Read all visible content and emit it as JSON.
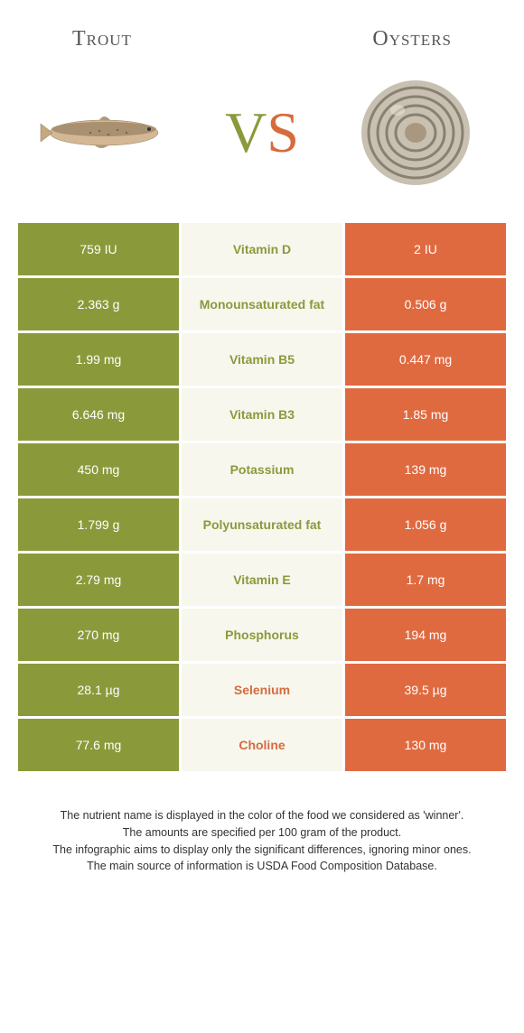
{
  "header": {
    "left_title": "Trout",
    "right_title": "Oysters"
  },
  "vs": {
    "v": "V",
    "s": "S"
  },
  "colors": {
    "left_bg": "#8a9a3b",
    "mid_bg": "#f7f7ee",
    "right_bg": "#e06a40",
    "nutrient_green": "#8a9a3b",
    "nutrient_orange": "#d66b3e"
  },
  "rows": [
    {
      "left": "759 IU",
      "nutrient": "Vitamin D",
      "right": "2 IU",
      "winner": "left"
    },
    {
      "left": "2.363 g",
      "nutrient": "Monounsaturated fat",
      "right": "0.506 g",
      "winner": "left"
    },
    {
      "left": "1.99 mg",
      "nutrient": "Vitamin B5",
      "right": "0.447 mg",
      "winner": "left"
    },
    {
      "left": "6.646 mg",
      "nutrient": "Vitamin B3",
      "right": "1.85 mg",
      "winner": "left"
    },
    {
      "left": "450 mg",
      "nutrient": "Potassium",
      "right": "139 mg",
      "winner": "left"
    },
    {
      "left": "1.799 g",
      "nutrient": "Polyunsaturated fat",
      "right": "1.056 g",
      "winner": "left"
    },
    {
      "left": "2.79 mg",
      "nutrient": "Vitamin E",
      "right": "1.7 mg",
      "winner": "left"
    },
    {
      "left": "270 mg",
      "nutrient": "Phosphorus",
      "right": "194 mg",
      "winner": "left"
    },
    {
      "left": "28.1 µg",
      "nutrient": "Selenium",
      "right": "39.5 µg",
      "winner": "right"
    },
    {
      "left": "77.6 mg",
      "nutrient": "Choline",
      "right": "130 mg",
      "winner": "right"
    }
  ],
  "footnote": {
    "line1": "The nutrient name is displayed in the color of the food we considered as 'winner'.",
    "line2": "The amounts are specified per 100 gram of the product.",
    "line3": "The infographic aims to display only the significant differences, ignoring minor ones.",
    "line4": "The main source of information is USDA Food Composition Database."
  }
}
